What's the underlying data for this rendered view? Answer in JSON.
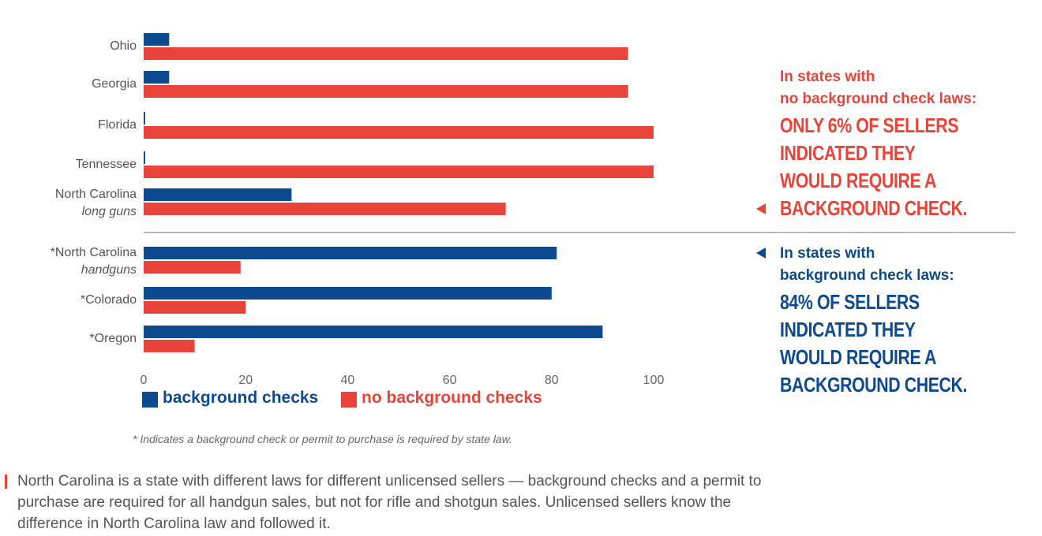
{
  "chart_data": {
    "type": "bar",
    "orientation": "horizontal",
    "categories": [
      {
        "name": "Ohio",
        "sub": ""
      },
      {
        "name": "Georgia",
        "sub": ""
      },
      {
        "name": "Florida",
        "sub": ""
      },
      {
        "name": "Tennessee",
        "sub": ""
      },
      {
        "name": "North Carolina",
        "sub": "long guns"
      },
      {
        "name": "*North Carolina",
        "sub": "handguns"
      },
      {
        "name": "*Colorado",
        "sub": ""
      },
      {
        "name": "*Oregon",
        "sub": ""
      }
    ],
    "series": [
      {
        "name": "background checks",
        "color": "#0d4a8f",
        "values": [
          5,
          5,
          0.3,
          0.3,
          29,
          81,
          80,
          90
        ]
      },
      {
        "name": "no background checks",
        "color": "#e8443a",
        "values": [
          95,
          95,
          100,
          100,
          71,
          19,
          20,
          10
        ]
      }
    ],
    "xlim": [
      0,
      100
    ],
    "xticks": [
      0,
      20,
      40,
      60,
      80,
      100
    ],
    "legend_position": "bottom-left",
    "grid": false
  },
  "legend": {
    "background_checks": "background checks",
    "no_background_checks": "no background checks"
  },
  "footnote": "* Indicates a background check or permit to purchase is required by state law.",
  "note": "North Carolina is a state with different laws for different unlicensed sellers — background checks and a permit to purchase are required for all handgun sales, but not for rifle and shotgun sales. Unlicensed sellers know the difference in North Carolina law and followed it.",
  "callouts": {
    "no_laws": {
      "line1": "In states with",
      "line2": "no background check laws:",
      "big1": "ONLY 6% OF SELLERS",
      "big2": "INDICATED THEY",
      "big3": "WOULD REQUIRE A",
      "big4": "BACKGROUND CHECK.",
      "color": "#e8443a"
    },
    "with_laws": {
      "line1": "In states with",
      "line2": "background check laws:",
      "big1": "84% OF SELLERS",
      "big2": "INDICATED THEY",
      "big3": "WOULD REQUIRE A",
      "big4": "BACKGROUND CHECK.",
      "color": "#0d4a8f"
    }
  }
}
